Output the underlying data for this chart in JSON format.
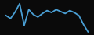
{
  "values": [
    38,
    32,
    45,
    62,
    18,
    50,
    40,
    35,
    42,
    48,
    44,
    50,
    46,
    42,
    48,
    44,
    38,
    20,
    5
  ],
  "line_color": "#4a9fd4",
  "background_color": "#0a0a0a",
  "linewidth": 1.3,
  "ylim_min": 0,
  "ylim_max": 68
}
